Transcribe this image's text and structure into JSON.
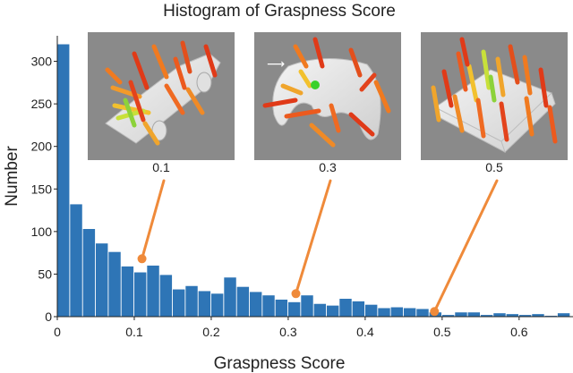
{
  "chart_data": {
    "type": "bar",
    "title": "Histogram of Graspness Score",
    "xlabel": "Graspness Score",
    "ylabel": "Number",
    "xlim": [
      0,
      0.67
    ],
    "ylim": [
      0,
      330
    ],
    "bin_width": 0.01667,
    "x_ticks": [
      "0",
      "0.1",
      "0.2",
      "0.3",
      "0.4",
      "0.5",
      "0.6"
    ],
    "y_ticks": [
      "0",
      "50",
      "100",
      "150",
      "200",
      "250",
      "300"
    ],
    "bar_color": "#2e75b6",
    "values": [
      320,
      132,
      103,
      86,
      76,
      59,
      52,
      60,
      49,
      32,
      36,
      30,
      27,
      46,
      35,
      29,
      25,
      20,
      17,
      25,
      15,
      13,
      21,
      18,
      14,
      10,
      11,
      10,
      9,
      5,
      2,
      5,
      5,
      2,
      4,
      3,
      2,
      3,
      1,
      4
    ],
    "annotations": [
      {
        "label": "0.1",
        "x": 0.11,
        "y": 68,
        "color": "#ef8a3a"
      },
      {
        "label": "0.3",
        "x": 0.31,
        "y": 27,
        "color": "#ef8a3a"
      },
      {
        "label": "0.5",
        "x": 0.49,
        "y": 6,
        "color": "#ef8a3a"
      }
    ]
  }
}
